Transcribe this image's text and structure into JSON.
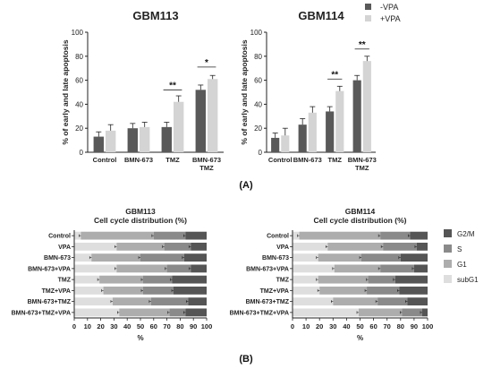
{
  "colors": {
    "neg_vpa": "#595959",
    "pos_vpa": "#d4d4d4",
    "g2m": "#555555",
    "s": "#8a8a8a",
    "g1": "#adadad",
    "subg1": "#dedede",
    "axis": "#222222"
  },
  "legend_a": {
    "neg": "-VPA",
    "pos": "+VPA"
  },
  "legend_b": [
    "G2/M",
    "S",
    "G1",
    "subG1"
  ],
  "panel_labels": {
    "a": "(A)",
    "b": "(B)"
  },
  "chart_data": [
    {
      "type": "bar",
      "title": "GBM113",
      "xlabel": "",
      "ylabel": "% of early and late apoptosis",
      "ylim": [
        0,
        100
      ],
      "yticks": [
        0,
        20,
        40,
        60,
        80,
        100
      ],
      "categories": [
        "Control",
        "BMN-673",
        "TMZ",
        "BMN-673\nTMZ"
      ],
      "series": [
        {
          "name": "-VPA",
          "values": [
            13,
            20,
            21,
            52
          ],
          "errors": [
            4,
            4,
            4,
            4
          ]
        },
        {
          "name": "+VPA",
          "values": [
            18,
            21,
            42,
            61
          ],
          "errors": [
            5,
            4,
            5,
            3
          ]
        }
      ],
      "significance": [
        {
          "category_index": 2,
          "label": "**",
          "height": 52
        },
        {
          "category_index": 3,
          "label": "*",
          "height": 71
        }
      ]
    },
    {
      "type": "bar",
      "title": "GBM114",
      "xlabel": "",
      "ylabel": "% of early and late apoptosis",
      "ylim": [
        0,
        100
      ],
      "yticks": [
        0,
        20,
        40,
        60,
        80,
        100
      ],
      "categories": [
        "Control",
        "BMN-673",
        "TMZ",
        "BMN-673\nTMZ"
      ],
      "series": [
        {
          "name": "-VPA",
          "values": [
            12,
            23,
            34,
            60
          ],
          "errors": [
            4,
            5,
            4,
            4
          ]
        },
        {
          "name": "+VPA",
          "values": [
            14,
            33,
            51,
            76
          ],
          "errors": [
            6,
            5,
            4,
            4
          ]
        }
      ],
      "significance": [
        {
          "category_index": 2,
          "label": "**",
          "height": 61
        },
        {
          "category_index": 3,
          "label": "**",
          "height": 86
        }
      ]
    },
    {
      "type": "bar",
      "orientation": "horizontal-stacked",
      "title": "GBM113",
      "subtitle": "Cell cycle distribution (%)",
      "xlabel": "%",
      "xlim": [
        0,
        100
      ],
      "xticks": [
        0,
        10,
        20,
        30,
        40,
        50,
        60,
        70,
        80,
        90,
        100
      ],
      "categories": [
        "Control",
        "VPA",
        "BMN-673",
        "BMN-673+VPA",
        "TMZ",
        "TMZ+VPA",
        "BMN-673+TMZ",
        "BMN-673+TMZ+VPA"
      ],
      "series": [
        {
          "name": "subG1",
          "values": [
            5,
            32,
            13,
            32,
            19,
            22,
            29,
            34
          ]
        },
        {
          "name": "G1",
          "values": [
            55,
            36,
            37,
            38,
            33,
            30,
            29,
            38
          ]
        },
        {
          "name": "S",
          "values": [
            24,
            20,
            33,
            18,
            22,
            23,
            28,
            12
          ]
        },
        {
          "name": "G2/M",
          "values": [
            16,
            12,
            17,
            12,
            26,
            25,
            14,
            16
          ]
        }
      ]
    },
    {
      "type": "bar",
      "orientation": "horizontal-stacked",
      "title": "GBM114",
      "subtitle": "Cell cycle distribution (%)",
      "xlabel": "%",
      "xlim": [
        0,
        100
      ],
      "xticks": [
        0,
        10,
        20,
        30,
        40,
        50,
        60,
        70,
        80,
        90,
        100
      ],
      "categories": [
        "Control",
        "VPA",
        "BMN-673",
        "BMN-673+VPA",
        "TMZ",
        "TMZ+VPA",
        "BMN-673+TMZ",
        "BMN-673+TMZ+VPA"
      ],
      "series": [
        {
          "name": "subG1",
          "values": [
            5,
            26,
            19,
            31,
            19,
            20,
            30,
            49
          ]
        },
        {
          "name": "G1",
          "values": [
            60,
            41,
            32,
            34,
            37,
            35,
            33,
            32
          ]
        },
        {
          "name": "S",
          "values": [
            22,
            25,
            29,
            25,
            20,
            24,
            22,
            15
          ]
        },
        {
          "name": "G2/M",
          "values": [
            13,
            8,
            20,
            10,
            24,
            21,
            15,
            4
          ]
        }
      ]
    }
  ]
}
